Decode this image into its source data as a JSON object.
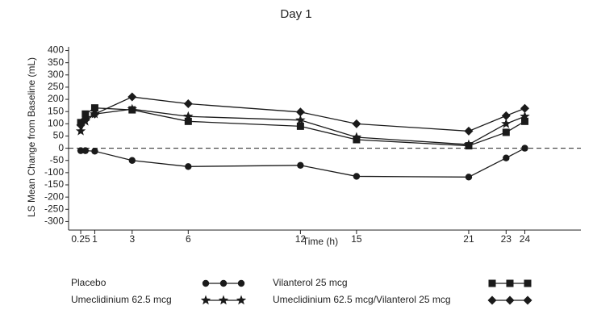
{
  "chart_data": {
    "type": "line",
    "title": "Day 1",
    "x_label": "Time (h)",
    "y_label": "LS Mean Change from Baseline (mL)",
    "x": [
      0.25,
      0.5,
      1,
      3,
      6,
      12,
      15,
      21,
      23,
      24
    ],
    "xlim": [
      -0.4,
      27
    ],
    "xticks": [
      0.25,
      1,
      3,
      6,
      12,
      15,
      21,
      23,
      24
    ],
    "ylim": [
      -335,
      415
    ],
    "yticks": [
      400,
      350,
      300,
      250,
      200,
      150,
      100,
      50,
      0,
      -50,
      -100,
      -150,
      -200,
      -250,
      -300
    ],
    "hline": 0,
    "series": [
      {
        "name": "Placebo",
        "color": "#1a1a1a",
        "marker": "circle",
        "values": [
          -10,
          -10,
          -12,
          -50,
          -75,
          -70,
          -115,
          -118,
          -40,
          0
        ]
      },
      {
        "name": "Vilanterol 25 mcg",
        "color": "#1a1a1a",
        "marker": "square",
        "values": [
          105,
          140,
          165,
          157,
          110,
          90,
          35,
          10,
          65,
          110
        ]
      },
      {
        "name": "Umeclidinium 62.5 mcg",
        "color": "#1a1a1a",
        "marker": "star",
        "values": [
          70,
          110,
          140,
          160,
          130,
          115,
          45,
          15,
          100,
          130
        ]
      },
      {
        "name": "Umeclidinium 62.5 mcg/Vilanterol 25 mcg",
        "color": "#1a1a1a",
        "marker": "diamond",
        "values": [
          95,
          120,
          140,
          210,
          182,
          148,
          100,
          70,
          133,
          163
        ]
      }
    ]
  }
}
